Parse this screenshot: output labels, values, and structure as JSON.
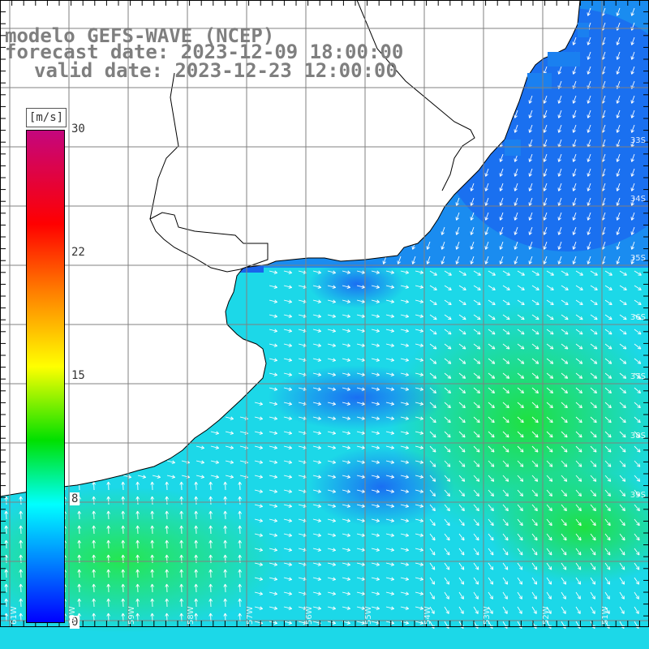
{
  "title": {
    "line1": "modelo GEFS-WAVE (NCEP)",
    "line2": "forecast date: 2023-12-09 18:00:00",
    "line3": "valid date: 2023-12-23 12:00:00"
  },
  "colorbar": {
    "unit": "[m/s]",
    "ticks": [
      "30",
      "22",
      "15",
      "8",
      "0"
    ],
    "colors": [
      "#c4067e",
      "#ff0000",
      "#ff8000",
      "#ffff00",
      "#00e000",
      "#00ffff",
      "#0080ff",
      "#0000ff"
    ]
  },
  "map": {
    "lon_labels": [
      "61W",
      "60W",
      "59W",
      "58W",
      "57W",
      "56W",
      "55W",
      "54W",
      "53W",
      "52W",
      "51W"
    ],
    "lat_labels": [
      "33S",
      "34S",
      "35S",
      "36S",
      "37S",
      "38S",
      "39S"
    ],
    "land_color": "#ffffff",
    "coast_color": "#000000",
    "grid_color": "#808080",
    "field": "wind speed"
  }
}
